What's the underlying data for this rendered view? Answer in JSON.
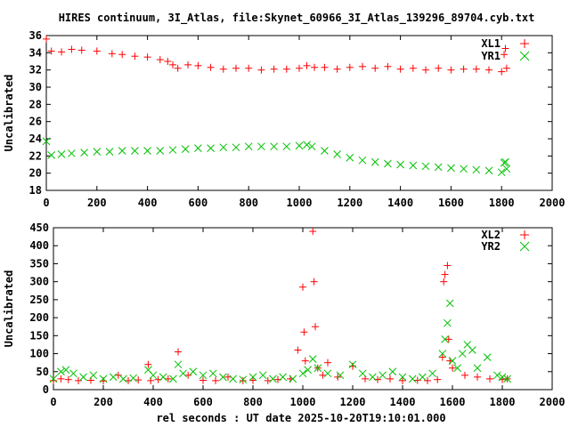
{
  "title": "HIRES continuum, 3I_Atlas, file:Skynet_60966_3I_Atlas_139296_89704.cyb.txt",
  "xlabel": "rel seconds : UT date 2025-10-20T19:10:01.000",
  "colors": {
    "red": "#ff0000",
    "green": "#00c000",
    "axis": "#000000"
  },
  "chart_data": [
    {
      "type": "scatter",
      "ylabel": "Uncalibrated",
      "xlim": [
        0,
        2000
      ],
      "ylim": [
        18,
        36
      ],
      "xticks": [
        0,
        200,
        400,
        600,
        800,
        1000,
        1200,
        1400,
        1600,
        1800,
        2000
      ],
      "yticks": [
        18,
        20,
        22,
        24,
        26,
        28,
        30,
        32,
        34,
        36
      ],
      "legend_position": "top-right",
      "series": [
        {
          "name": "XL1",
          "marker": "plus",
          "color": "#ff0000",
          "x": [
            0,
            20,
            60,
            100,
            140,
            200,
            260,
            300,
            350,
            400,
            450,
            480,
            500,
            520,
            560,
            600,
            650,
            700,
            750,
            800,
            850,
            900,
            950,
            1000,
            1030,
            1060,
            1100,
            1150,
            1200,
            1250,
            1300,
            1350,
            1400,
            1450,
            1500,
            1550,
            1600,
            1650,
            1700,
            1750,
            1800,
            1810,
            1815,
            1820
          ],
          "y": [
            35.6,
            34.2,
            34.1,
            34.4,
            34.3,
            34.2,
            33.9,
            33.8,
            33.6,
            33.5,
            33.2,
            33.0,
            32.6,
            32.2,
            32.6,
            32.5,
            32.3,
            32.1,
            32.2,
            32.2,
            32.0,
            32.1,
            32.1,
            32.2,
            32.5,
            32.3,
            32.3,
            32.1,
            32.3,
            32.4,
            32.2,
            32.4,
            32.1,
            32.2,
            32.0,
            32.2,
            32.0,
            32.1,
            32.1,
            32.0,
            31.8,
            33.8,
            34.5,
            32.2
          ]
        },
        {
          "name": "YR1",
          "marker": "cross",
          "color": "#00c000",
          "x": [
            0,
            20,
            60,
            100,
            150,
            200,
            250,
            300,
            350,
            400,
            450,
            500,
            550,
            600,
            650,
            700,
            750,
            800,
            850,
            900,
            950,
            1000,
            1030,
            1050,
            1100,
            1150,
            1200,
            1250,
            1300,
            1350,
            1400,
            1450,
            1500,
            1550,
            1600,
            1650,
            1700,
            1750,
            1800,
            1810,
            1815,
            1820
          ],
          "y": [
            23.7,
            22.1,
            22.2,
            22.3,
            22.4,
            22.5,
            22.5,
            22.6,
            22.6,
            22.6,
            22.6,
            22.7,
            22.8,
            22.9,
            22.9,
            23.0,
            23.0,
            23.1,
            23.1,
            23.1,
            23.1,
            23.2,
            23.3,
            23.1,
            22.6,
            22.2,
            21.8,
            21.5,
            21.3,
            21.1,
            21.0,
            20.9,
            20.8,
            20.7,
            20.6,
            20.5,
            20.4,
            20.3,
            20.1,
            21.2,
            21.3,
            20.5
          ]
        }
      ]
    },
    {
      "type": "scatter",
      "ylabel": "Uncalibrated",
      "xlim": [
        0,
        2000
      ],
      "ylim": [
        0,
        450
      ],
      "xticks": [
        0,
        200,
        400,
        600,
        800,
        1000,
        1200,
        1400,
        1600,
        1800,
        2000
      ],
      "yticks": [
        0,
        50,
        100,
        150,
        200,
        250,
        300,
        350,
        400,
        450
      ],
      "legend_position": "top-right",
      "series": [
        {
          "name": "XL2",
          "marker": "plus",
          "color": "#ff0000",
          "x": [
            0,
            30,
            60,
            100,
            150,
            200,
            260,
            300,
            340,
            380,
            390,
            420,
            460,
            500,
            540,
            600,
            650,
            700,
            760,
            800,
            860,
            900,
            950,
            980,
            1000,
            1005,
            1010,
            1040,
            1045,
            1050,
            1060,
            1080,
            1100,
            1140,
            1200,
            1250,
            1300,
            1350,
            1400,
            1460,
            1500,
            1540,
            1560,
            1565,
            1570,
            1580,
            1585,
            1590,
            1600,
            1650,
            1700,
            1750,
            1800,
            1820
          ],
          "y": [
            25,
            30,
            28,
            25,
            26,
            24,
            40,
            25,
            27,
            70,
            25,
            28,
            30,
            105,
            40,
            26,
            25,
            35,
            25,
            26,
            25,
            28,
            30,
            110,
            285,
            160,
            80,
            440,
            300,
            175,
            60,
            40,
            75,
            35,
            65,
            30,
            28,
            30,
            25,
            26,
            25,
            28,
            90,
            300,
            320,
            345,
            140,
            80,
            60,
            40,
            35,
            30,
            28,
            30
          ]
        },
        {
          "name": "YR2",
          "marker": "cross",
          "color": "#00c000",
          "x": [
            0,
            30,
            50,
            80,
            120,
            160,
            200,
            240,
            280,
            320,
            380,
            400,
            440,
            480,
            500,
            520,
            560,
            600,
            640,
            680,
            720,
            760,
            800,
            840,
            880,
            920,
            960,
            1000,
            1020,
            1040,
            1060,
            1100,
            1150,
            1200,
            1240,
            1280,
            1320,
            1360,
            1400,
            1440,
            1480,
            1520,
            1560,
            1570,
            1580,
            1590,
            1600,
            1620,
            1640,
            1660,
            1680,
            1700,
            1740,
            1780,
            1800,
            1820
          ],
          "y": [
            30,
            50,
            55,
            45,
            35,
            40,
            30,
            35,
            30,
            32,
            55,
            40,
            35,
            30,
            70,
            45,
            50,
            40,
            45,
            35,
            30,
            28,
            35,
            40,
            30,
            35,
            30,
            45,
            55,
            85,
            60,
            45,
            40,
            70,
            45,
            35,
            40,
            50,
            35,
            30,
            35,
            45,
            100,
            140,
            185,
            240,
            80,
            60,
            100,
            125,
            110,
            60,
            90,
            40,
            35,
            30
          ]
        }
      ]
    }
  ]
}
